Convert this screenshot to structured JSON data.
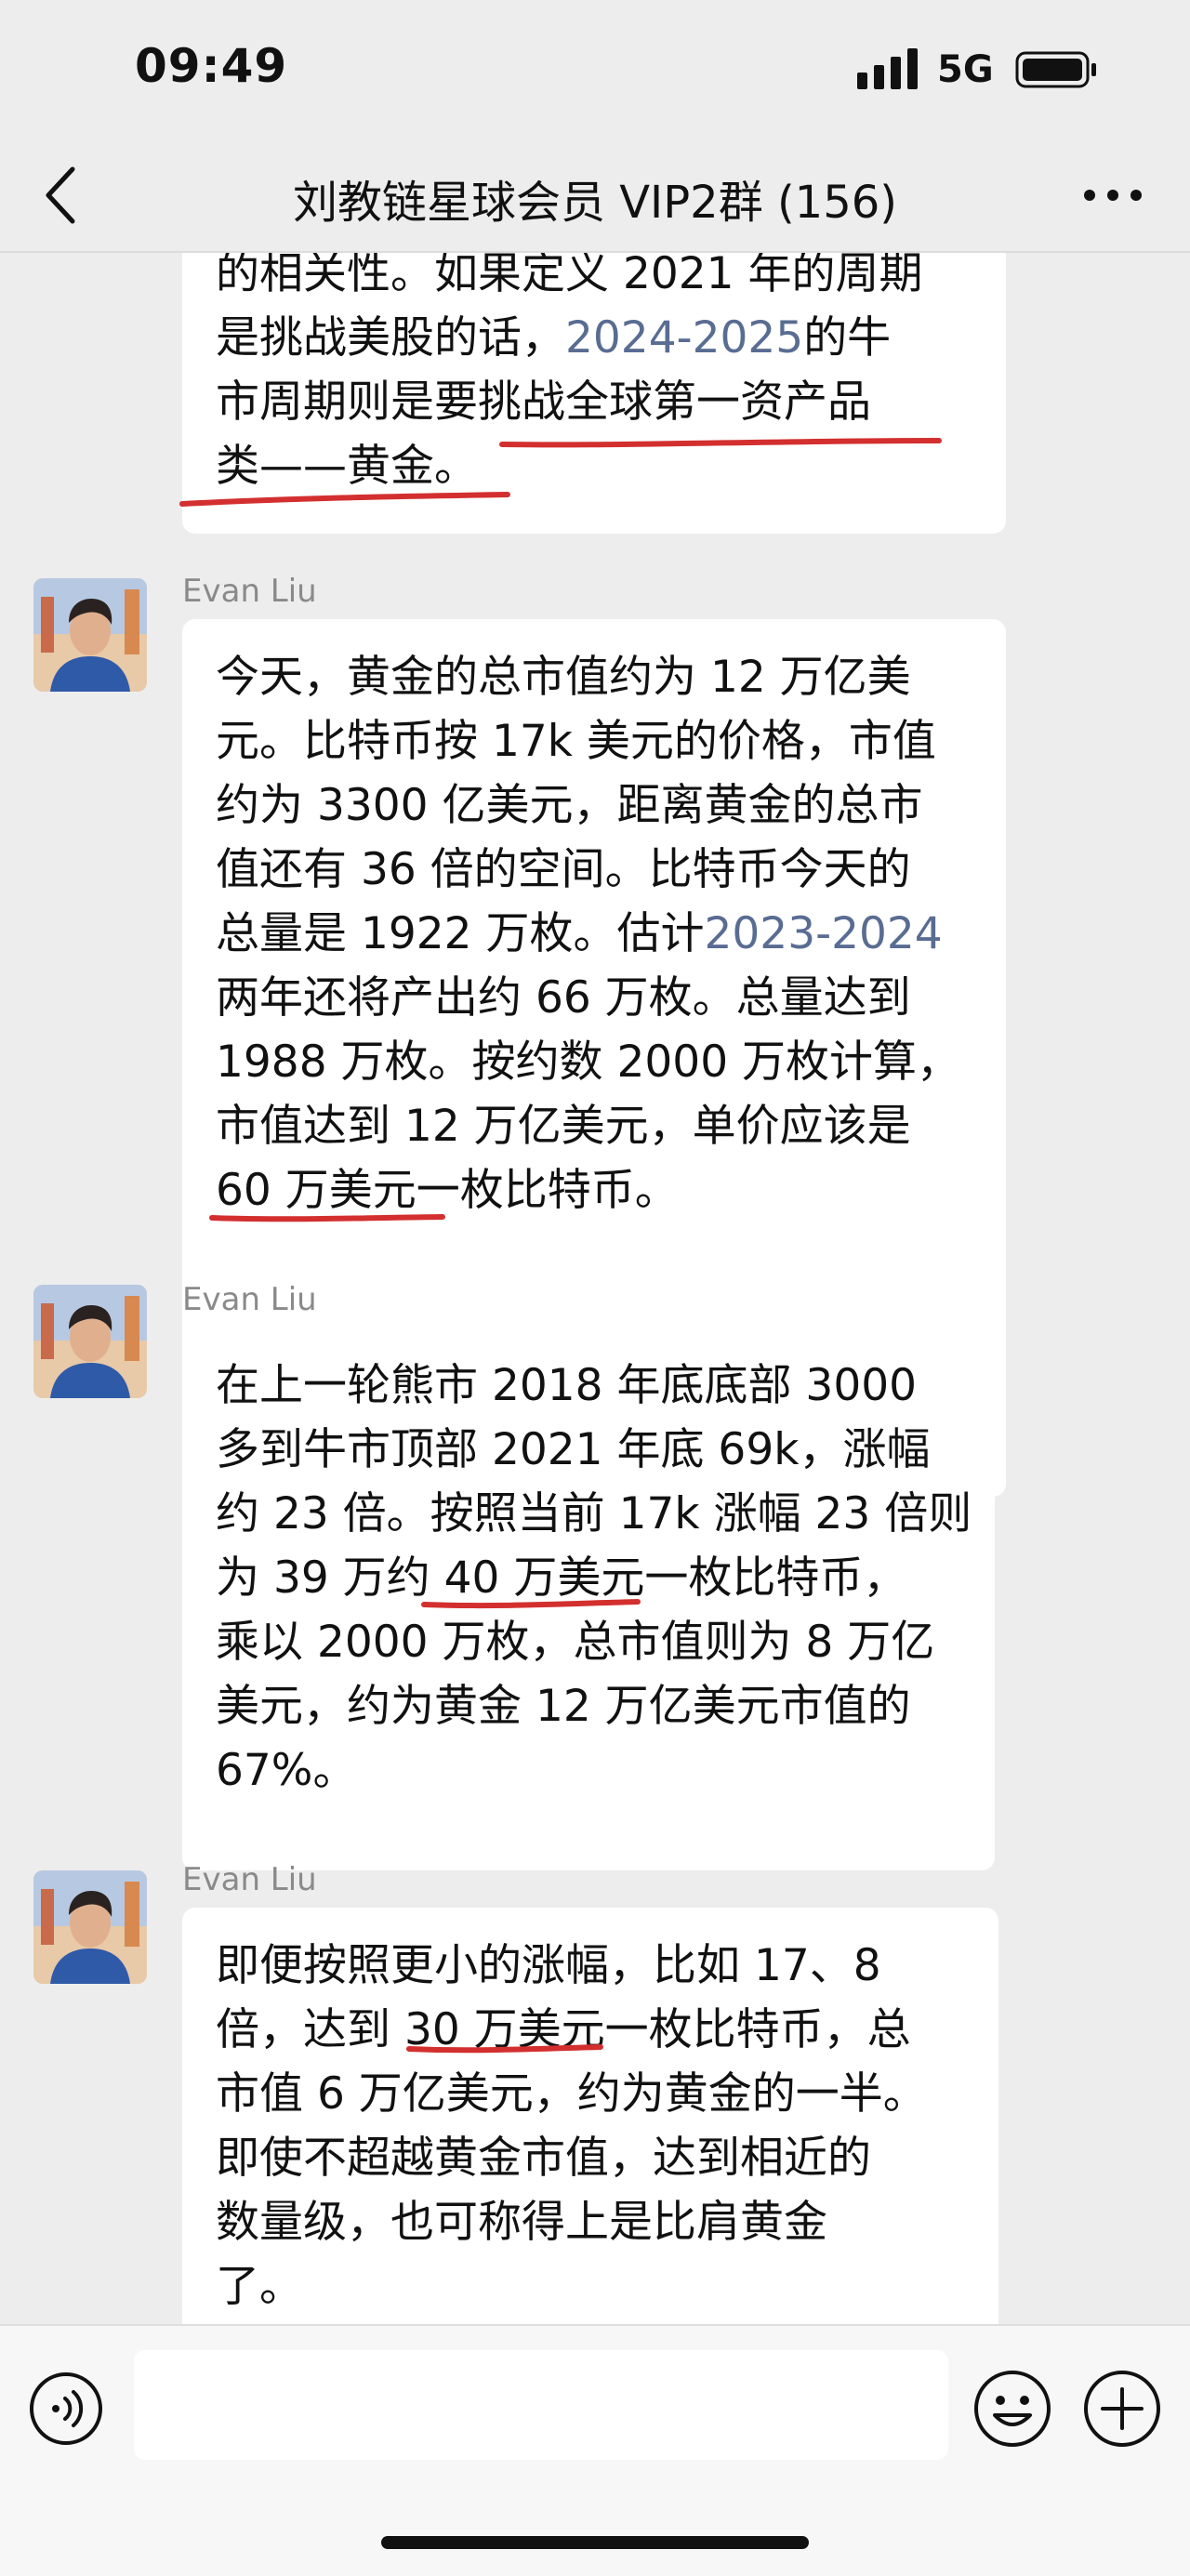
{
  "status_bar": {
    "time": "09:49",
    "network": "5G"
  },
  "header": {
    "title": "刘教链星球会员 VIP2群 (156)"
  },
  "messages": [
    {
      "sender": "",
      "lines": [
        [
          "的相关性。如果定义 2021 年的周期"
        ],
        [
          "是挑战美股的话，",
          "2024-2025",
          "的牛"
        ],
        [
          "市周期则是要挑战全球第一资产品"
        ],
        [
          "类——黄金。"
        ]
      ]
    },
    {
      "sender": "Evan Liu",
      "lines": [
        [
          "今天，黄金的总市值约为 12 万亿美"
        ],
        [
          "元。比特币按 17k 美元的价格，市值"
        ],
        [
          "约为 3300 亿美元，距离黄金的总市"
        ],
        [
          "值还有 36 倍的空间。比特币今天的"
        ],
        [
          "总量是 1922 万枚。估计",
          "2023-2024"
        ],
        [
          "两年还将产出约 66 万枚。总量达到"
        ],
        [
          "1988 万枚。按约数 2000 万枚计算，"
        ],
        [
          "市值达到 12 万亿美元，单价应该是"
        ],
        [
          "60 万美元一枚比特币。"
        ]
      ]
    },
    {
      "sender": "Evan Liu",
      "lines": [
        [
          "在上一轮熊市 2018 年底底部 3000"
        ],
        [
          "多到牛市顶部 2021 年底 69k，涨幅"
        ],
        [
          "约 23 倍。按照当前 17k 涨幅 23 倍则"
        ],
        [
          "为 39 万约 40 万美元一枚比特币，"
        ],
        [
          "乘以 2000 万枚，总市值则为 8 万亿"
        ],
        [
          "美元，约为黄金 12 万亿美元市值的"
        ],
        [
          "67%。"
        ]
      ]
    },
    {
      "sender": "Evan Liu",
      "lines": [
        [
          "即便按照更小的涨幅，比如 17、8"
        ],
        [
          "倍，达到 30 万美元一枚比特币，总"
        ],
        [
          "市值 6 万亿美元，约为黄金的一半。"
        ],
        [
          "即使不超越黄金市值，达到相近的"
        ],
        [
          "数量级，也可称得上是比肩黄金"
        ],
        [
          "了。"
        ]
      ]
    }
  ],
  "input": {
    "placeholder": ""
  },
  "colors": {
    "background": "#ededed",
    "bubble": "#ffffff",
    "link": "#596c92",
    "annotation": "#d32f2f"
  },
  "icons": [
    "signal-icon",
    "battery-icon",
    "back-arrow-icon",
    "more-icon",
    "avatar",
    "voice-icon",
    "emoji-icon",
    "plus-icon"
  ]
}
